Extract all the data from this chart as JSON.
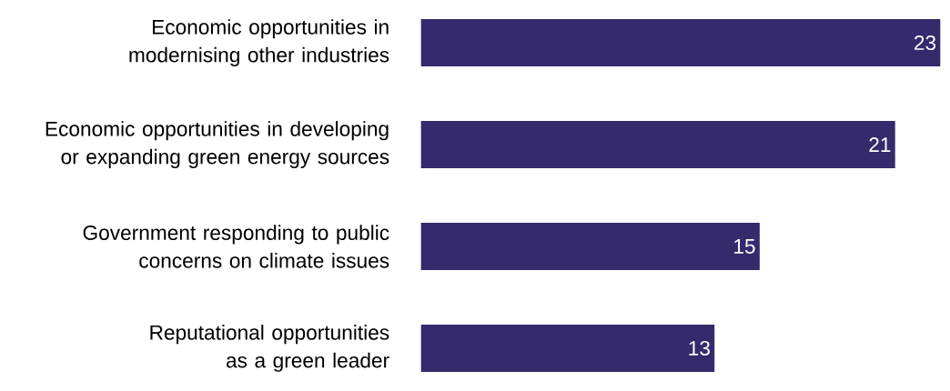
{
  "chart_data": {
    "type": "bar",
    "orientation": "horizontal",
    "categories": [
      "Economic opportunities in modernising other industries",
      "Economic opportunities in developing or expanding green energy sources",
      "Government responding to public concerns on climate issues",
      "Reputational opportunities as a green leader"
    ],
    "values": [
      23,
      21,
      15,
      13
    ],
    "color": "#342a6c",
    "data_labels": true
  }
}
